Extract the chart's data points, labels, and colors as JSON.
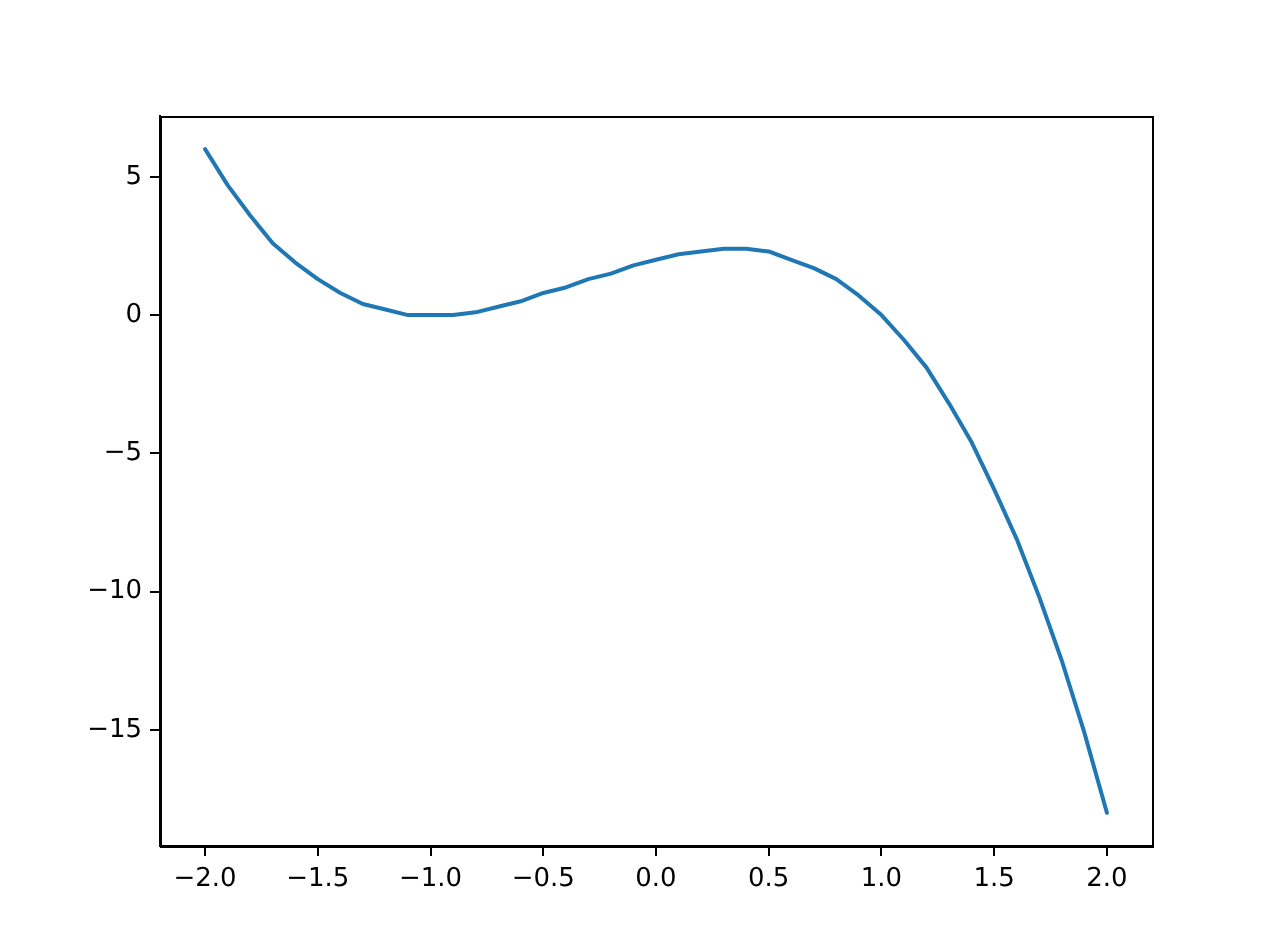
{
  "chart_data": {
    "type": "line",
    "x": [
      -2,
      -1.9,
      -1.8,
      -1.7,
      -1.6,
      -1.5,
      -1.4,
      -1.3,
      -1.2,
      -1.1,
      -1,
      -0.9,
      -0.8,
      -0.7,
      -0.6,
      -0.5,
      -0.4,
      -0.3,
      -0.2,
      -0.1,
      0,
      0.1,
      0.2,
      0.3,
      0.4,
      0.5,
      0.6,
      0.7,
      0.8,
      0.9,
      1,
      1.1,
      1.2,
      1.3,
      1.4,
      1.5,
      1.6,
      1.7,
      1.8,
      1.9,
      2
    ],
    "series": [
      {
        "color": "#1f77b4",
        "values": [
          6,
          4.7,
          3.6,
          2.6,
          1.9,
          1.3,
          0.8,
          0.4,
          0.2,
          0.0,
          0,
          0.0,
          0.1,
          0.3,
          0.5,
          0.8,
          1.0,
          1.3,
          1.5,
          1.8,
          2,
          2.2,
          2.3,
          2.4,
          2.4,
          2.3,
          2.0,
          1.7,
          1.3,
          0.7,
          0,
          -0.9,
          -1.9,
          -3.2,
          -4.6,
          -6.3,
          -8.1,
          -10.2,
          -12.5,
          -15.1,
          -18
        ]
      }
    ],
    "xlim": [
      -2.2,
      2.2
    ],
    "ylim": [
      -19.2,
      7.2
    ],
    "xticks": [
      {
        "value": -2,
        "label": "−2.0"
      },
      {
        "value": -1.5,
        "label": "−1.5"
      },
      {
        "value": -1,
        "label": "−1.0"
      },
      {
        "value": -0.5,
        "label": "−0.5"
      },
      {
        "value": 0,
        "label": "0.0"
      },
      {
        "value": 0.5,
        "label": "0.5"
      },
      {
        "value": 1,
        "label": "1.0"
      },
      {
        "value": 1.5,
        "label": "1.5"
      },
      {
        "value": 2,
        "label": "2.0"
      }
    ],
    "yticks": [
      {
        "value": -15,
        "label": "−15"
      },
      {
        "value": -10,
        "label": "−10"
      },
      {
        "value": -5,
        "label": "−5"
      },
      {
        "value": 0,
        "label": "0"
      },
      {
        "value": 5,
        "label": "5"
      }
    ],
    "grid": false,
    "legend": false,
    "marker": "none",
    "line_style": "solid"
  }
}
